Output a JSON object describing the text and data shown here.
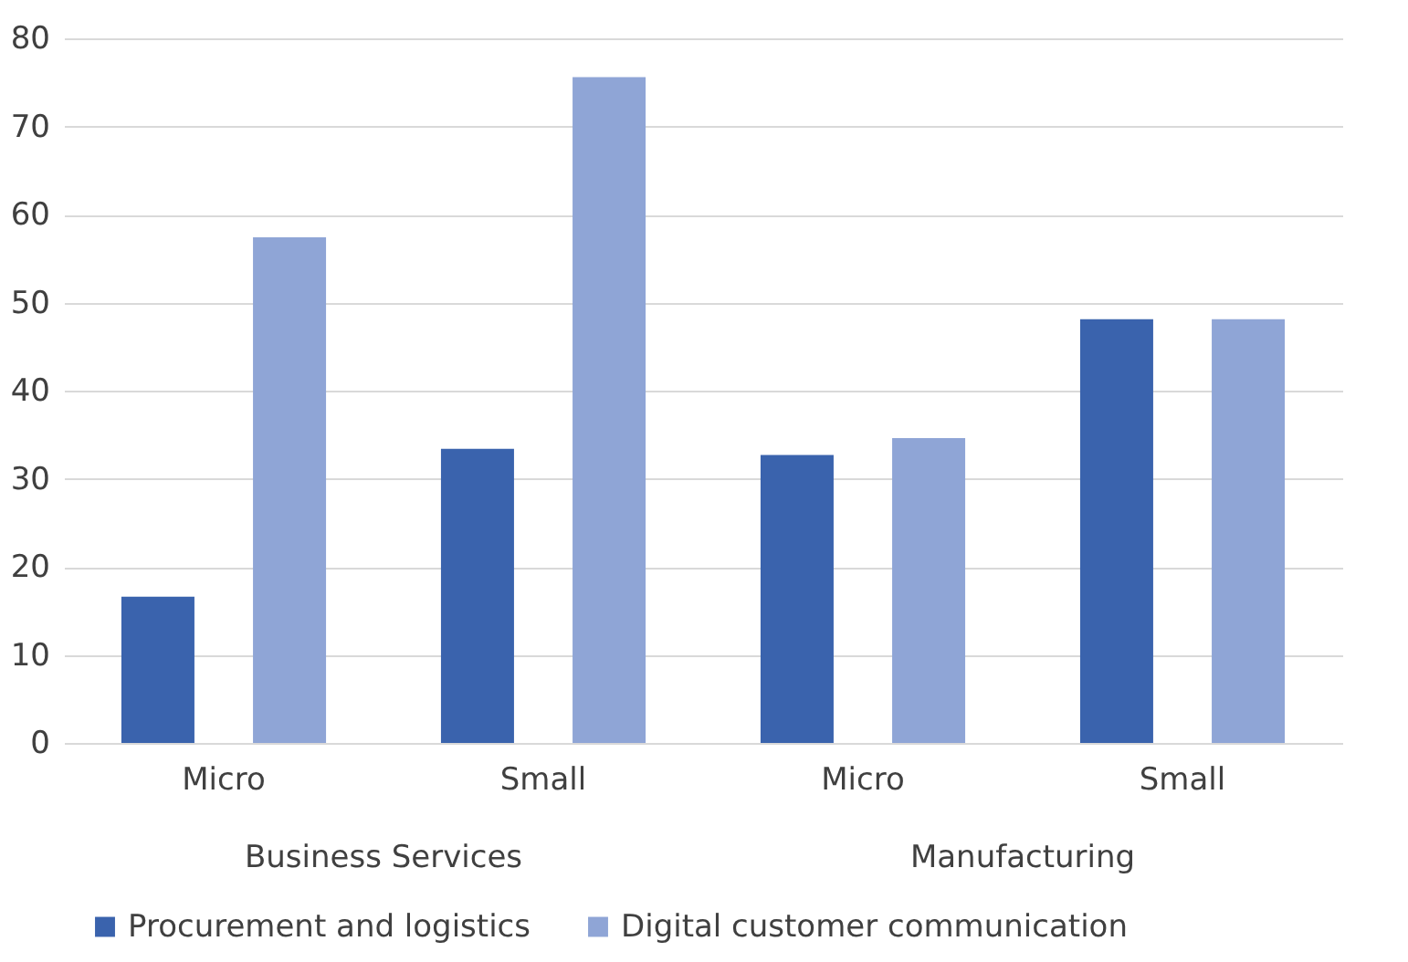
{
  "chart_data": {
    "type": "bar",
    "categories": [
      "Micro",
      "Small",
      "Micro",
      "Small"
    ],
    "annotations": [
      "Business Services",
      "Manufacturing"
    ],
    "series": [
      {
        "name": "Procurement and logistics",
        "color": "#3a63ad",
        "values": [
          16.6,
          33.4,
          32.7,
          48.1
        ]
      },
      {
        "name": "Digital customer communication",
        "color": "#8fa5d6",
        "values": [
          57.4,
          75.6,
          34.6,
          48.1
        ]
      }
    ],
    "ylim": [
      0,
      80
    ],
    "yticks": [
      0,
      10,
      20,
      30,
      40,
      50,
      60,
      70,
      80
    ],
    "grid": "y",
    "legend": "bottom"
  }
}
